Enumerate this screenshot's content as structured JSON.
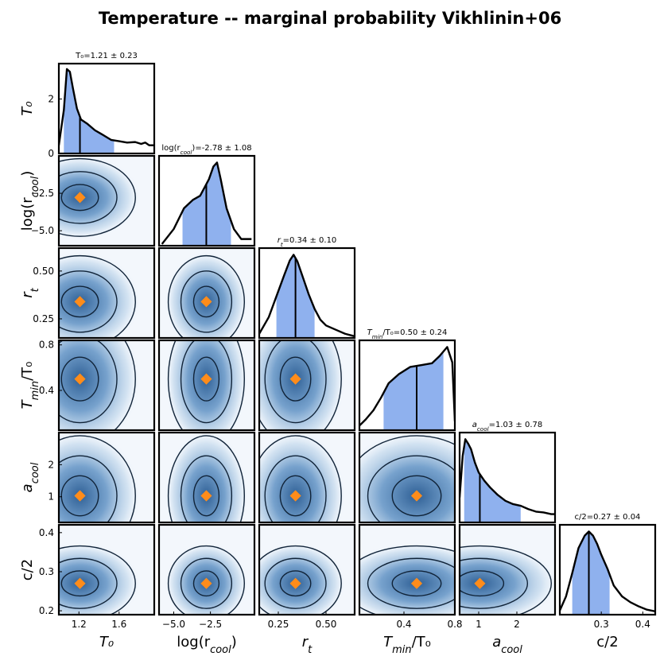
{
  "figure": {
    "title": "Temperature -- marginal probability Vikhlinin+06"
  },
  "chart_data": {
    "type": "corner",
    "title": "Temperature -- marginal probability Vikhlinin+06",
    "colors": {
      "fill": "#8fb1ee",
      "line": "#000000",
      "marker": "#ff8c1a",
      "density_light": "#e3edf7",
      "density_dark": "#24578f"
    },
    "parameters": [
      {
        "name": "T0",
        "label": "T₀",
        "range": [
          1.0,
          1.95
        ],
        "ticks": [
          1.2,
          1.6
        ],
        "tick_labels": [
          "1.2",
          "1.6"
        ],
        "estimate": 1.21,
        "sigma": 0.23,
        "summary": "T₀=1.21 ± 0.23",
        "interval": [
          1.05,
          1.55
        ],
        "pdf_x": [
          1.0,
          1.05,
          1.08,
          1.11,
          1.14,
          1.18,
          1.22,
          1.28,
          1.36,
          1.44,
          1.52,
          1.6,
          1.68,
          1.76,
          1.82,
          1.86,
          1.9,
          1.95
        ],
        "pdf_y": [
          0.3,
          1.6,
          3.1,
          3.0,
          2.4,
          1.65,
          1.25,
          1.1,
          0.85,
          0.68,
          0.5,
          0.45,
          0.4,
          0.42,
          0.35,
          0.4,
          0.3,
          0.3
        ],
        "pdf_ticks": [
          0,
          2
        ],
        "pdf_tick_labels": [
          "0",
          "2"
        ],
        "pdf_max": 3.3
      },
      {
        "name": "log_rcool",
        "label": "log(r_cool)",
        "range": [
          -6.0,
          0.5
        ],
        "ticks": [
          -5.0,
          -2.5
        ],
        "tick_labels": [
          "−5.0",
          "−2.5"
        ],
        "estimate": -2.78,
        "sigma": 1.08,
        "summary": "log(r_cool)=-2.78 ± 1.08",
        "interval": [
          -4.4,
          -1.1
        ],
        "pdf_x": [
          -5.8,
          -5.0,
          -4.3,
          -3.7,
          -3.2,
          -2.9,
          -2.6,
          -2.3,
          -2.05,
          -1.8,
          -1.4,
          -0.9,
          -0.4,
          0.3
        ],
        "pdf_y": [
          0.02,
          0.2,
          0.45,
          0.55,
          0.6,
          0.7,
          0.8,
          0.95,
          1.0,
          0.8,
          0.45,
          0.2,
          0.08,
          0.08
        ]
      },
      {
        "name": "rt",
        "label": "r_t",
        "range": [
          0.15,
          0.65
        ],
        "ticks": [
          0.25,
          0.5
        ],
        "tick_labels": [
          "0.25",
          "0.50"
        ],
        "estimate": 0.34,
        "sigma": 0.1,
        "summary": "r_t=0.34 ± 0.10",
        "interval": [
          0.24,
          0.44
        ],
        "pdf_x": [
          0.15,
          0.2,
          0.24,
          0.28,
          0.31,
          0.33,
          0.35,
          0.38,
          0.41,
          0.44,
          0.47,
          0.5,
          0.55,
          0.6,
          0.65
        ],
        "pdf_y": [
          0.05,
          0.25,
          0.5,
          0.75,
          0.93,
          1.0,
          0.92,
          0.72,
          0.52,
          0.35,
          0.22,
          0.15,
          0.1,
          0.05,
          0.02
        ]
      },
      {
        "name": "Tmin_T0",
        "label": "T_min/T₀",
        "range": [
          0.05,
          0.8
        ],
        "ticks": [
          0.4,
          0.8
        ],
        "tick_labels": [
          "0.4",
          "0.8"
        ],
        "estimate": 0.5,
        "sigma": 0.24,
        "summary": "T_min/T₀=0.50 ± 0.24",
        "interval": [
          0.24,
          0.71
        ],
        "pdf_x": [
          0.05,
          0.1,
          0.16,
          0.22,
          0.28,
          0.36,
          0.45,
          0.54,
          0.62,
          0.68,
          0.74,
          0.78,
          0.8
        ],
        "pdf_y": [
          0.05,
          0.12,
          0.22,
          0.36,
          0.52,
          0.62,
          0.7,
          0.72,
          0.74,
          0.82,
          0.92,
          0.75,
          0.1
        ]
      },
      {
        "name": "a_cool",
        "label": "a_cool",
        "range": [
          0.5,
          3.0
        ],
        "ticks": [
          1.0,
          2.0
        ],
        "tick_labels": [
          "1",
          "2"
        ],
        "estimate": 1.03,
        "sigma": 0.78,
        "summary": "a_cool=1.03 ± 0.78",
        "interval": [
          0.62,
          2.1
        ],
        "pdf_x": [
          0.5,
          0.58,
          0.65,
          0.72,
          0.8,
          0.9,
          1.0,
          1.15,
          1.3,
          1.5,
          1.7,
          1.9,
          2.1,
          2.3,
          2.5,
          2.7,
          2.9,
          3.0
        ],
        "pdf_y": [
          0.3,
          0.8,
          1.0,
          0.95,
          0.88,
          0.72,
          0.6,
          0.5,
          0.42,
          0.33,
          0.26,
          0.22,
          0.2,
          0.16,
          0.13,
          0.12,
          0.1,
          0.1
        ],
        "ticks_y": [
          1.0,
          2.0
        ],
        "tick_labels_y": [
          "1",
          "2"
        ],
        "range_y": [
          0.2,
          3.0
        ]
      },
      {
        "name": "c_half",
        "label": "c/2",
        "range": [
          0.2,
          0.43
        ],
        "ticks": [
          0.3,
          0.4
        ],
        "tick_labels": [
          "0.3",
          "0.4"
        ],
        "estimate": 0.27,
        "sigma": 0.04,
        "summary": "c/2=0.27 ± 0.04",
        "interval": [
          0.23,
          0.32
        ],
        "pdf_x": [
          0.2,
          0.215,
          0.23,
          0.245,
          0.26,
          0.27,
          0.28,
          0.29,
          0.3,
          0.315,
          0.33,
          0.35,
          0.37,
          0.39,
          0.41,
          0.43
        ],
        "pdf_y": [
          0.05,
          0.22,
          0.5,
          0.8,
          0.95,
          1.0,
          0.95,
          0.85,
          0.72,
          0.55,
          0.35,
          0.22,
          0.15,
          0.1,
          0.06,
          0.04
        ],
        "range_y": [
          0.19,
          0.42
        ],
        "ticks_y": [
          0.2,
          0.3,
          0.4
        ],
        "tick_labels_y": [
          "0.2",
          "0.3",
          "0.4"
        ]
      }
    ],
    "y_axis": {
      "log_rcool": {
        "range": [
          -6.0,
          0.0
        ],
        "ticks": [
          -5.0,
          -2.5
        ],
        "tick_labels": [
          "−5.0",
          "−2.5"
        ]
      },
      "rt": {
        "range": [
          0.15,
          0.62
        ],
        "ticks": [
          0.25,
          0.5
        ],
        "tick_labels": [
          "0.25",
          "0.50"
        ]
      },
      "Tmin_T0": {
        "range": [
          0.05,
          0.84
        ],
        "ticks": [
          0.4,
          0.8
        ],
        "tick_labels": [
          "0.4",
          "0.8"
        ]
      },
      "a_cool": {
        "range": [
          0.2,
          3.0
        ],
        "ticks": [
          1.0,
          2.0
        ],
        "tick_labels": [
          "1",
          "2"
        ]
      },
      "c_half": {
        "range": [
          0.19,
          0.42
        ],
        "ticks": [
          0.2,
          0.3,
          0.4
        ],
        "tick_labels": [
          "0.2",
          "0.3",
          "0.4"
        ]
      }
    },
    "axis_labels": {
      "x": [
        "T₀",
        "log(r_cool)",
        "r_t",
        "T_min/T₀",
        "a_cool",
        "c/2"
      ],
      "y": [
        "T₀",
        "log(r_cool)",
        "r_t",
        "T_min/T₀",
        "a_cool",
        "c/2"
      ]
    }
  }
}
